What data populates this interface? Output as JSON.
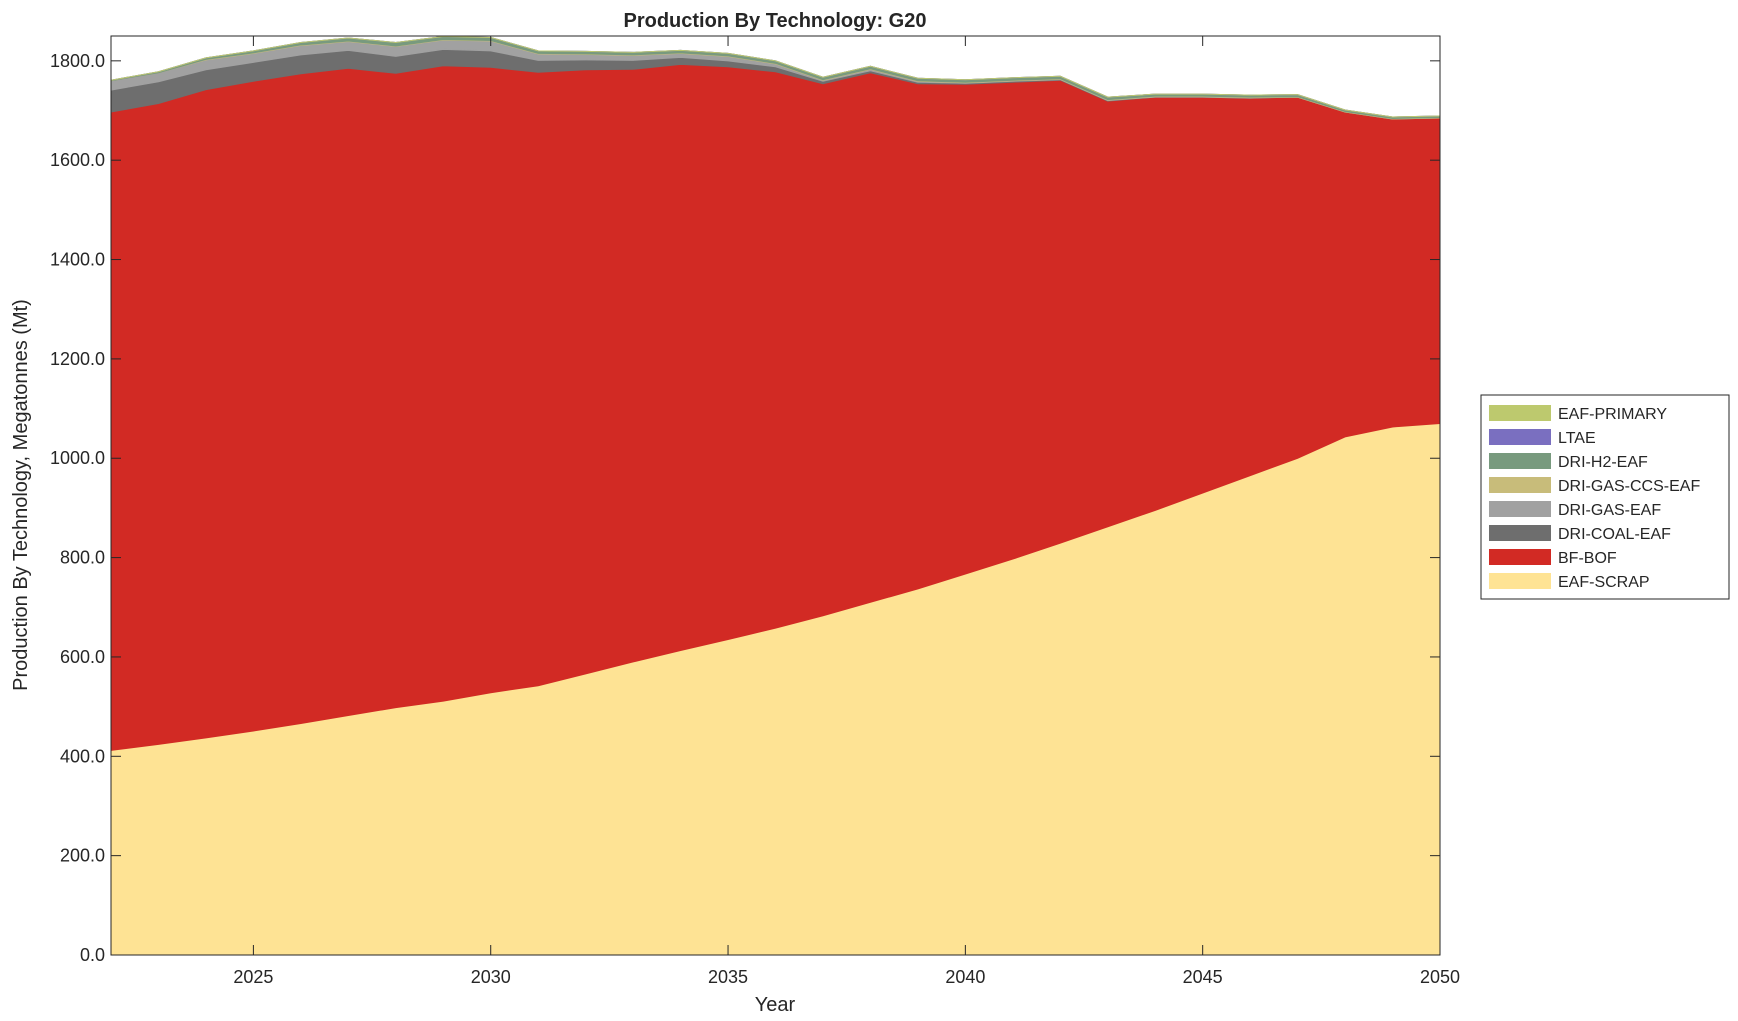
{
  "chart_data": {
    "type": "area",
    "stacked": true,
    "title": "Production By Technology: G20",
    "xlabel": "Year",
    "ylabel": "Production By Technology, Megatonnes (Mt)",
    "xlim": [
      2022,
      2050
    ],
    "ylim": [
      0,
      1850
    ],
    "xticks": [
      2025,
      2030,
      2035,
      2040,
      2045,
      2050
    ],
    "xtick_labels": [
      "2025",
      "2030",
      "2035",
      "2040",
      "2045",
      "2050"
    ],
    "yticks": [
      0,
      200,
      400,
      600,
      800,
      1000,
      1200,
      1400,
      1600,
      1800
    ],
    "ytick_labels": [
      "0.0",
      "200.0",
      "400.0",
      "600.0",
      "800.0",
      "1000.0",
      "1200.0",
      "1400.0",
      "1600.0",
      "1800.0"
    ],
    "legend_position": "right",
    "x": [
      2022,
      2023,
      2024,
      2025,
      2026,
      2027,
      2028,
      2029,
      2030,
      2031,
      2032,
      2033,
      2034,
      2035,
      2036,
      2037,
      2038,
      2039,
      2040,
      2041,
      2042,
      2043,
      2044,
      2045,
      2046,
      2047,
      2048,
      2049,
      2050
    ],
    "series": [
      {
        "name": "EAF-SCRAP",
        "color": "#FEE394",
        "values": [
          412,
          424,
          437,
          451,
          466,
          482,
          498,
          511,
          528,
          542,
          566,
          590,
          613,
          635,
          658,
          683,
          710,
          737,
          767,
          797,
          829,
          862,
          895,
          930,
          965,
          1000,
          1043,
          1063,
          1070
        ]
      },
      {
        "name": "BF-BOF",
        "color": "#D22A24",
        "values": [
          1285,
          1290,
          1305,
          1308,
          1308,
          1303,
          1277,
          1279,
          1259,
          1235,
          1216,
          1193,
          1180,
          1153,
          1120,
          1071,
          1066,
          1017,
          986,
          960,
          932,
          857,
          832,
          797,
          760,
          727,
          654,
          620,
          615
        ]
      },
      {
        "name": "DRI-COAL-EAF",
        "color": "#6E6E6E",
        "values": [
          44,
          44,
          40,
          38,
          38,
          36,
          34,
          33,
          33,
          24,
          20,
          18,
          14,
          12,
          10,
          5,
          4,
          3,
          2,
          2,
          1,
          1,
          0,
          0,
          0,
          0,
          0,
          0,
          0
        ]
      },
      {
        "name": "DRI-GAS-EAF",
        "color": "#A1A1A1",
        "values": [
          19,
          18,
          20,
          18,
          19,
          18,
          20,
          19,
          20,
          13,
          11,
          10,
          8,
          9,
          6,
          2,
          3,
          2,
          1,
          1,
          1,
          1,
          1,
          1,
          1,
          0,
          0,
          0,
          0
        ]
      },
      {
        "name": "DRI-GAS-CCS-EAF",
        "color": "#C8BC7A",
        "values": [
          0,
          0,
          1,
          1,
          1,
          1,
          1,
          1,
          1,
          1,
          1,
          1,
          1,
          1,
          1,
          1,
          1,
          1,
          1,
          1,
          1,
          1,
          1,
          1,
          1,
          1,
          1,
          1,
          1
        ]
      },
      {
        "name": "DRI-H2-EAF",
        "color": "#789A7E",
        "values": [
          1,
          2,
          3,
          4,
          5,
          6,
          7,
          6,
          6,
          5,
          5,
          5,
          5,
          5,
          5,
          5,
          5,
          5,
          5,
          5,
          5,
          5,
          4,
          4,
          4,
          4,
          3,
          3,
          3
        ]
      },
      {
        "name": "LTAE",
        "color": "#7A6FC0",
        "values": [
          0,
          0,
          0,
          0,
          0,
          0,
          0,
          0,
          0,
          0,
          0,
          0,
          0,
          0,
          0,
          0,
          0,
          0,
          0,
          0,
          0,
          0,
          0,
          0,
          0,
          0,
          0,
          0,
          0
        ]
      },
      {
        "name": "EAF-PRIMARY",
        "color": "#BDC96E",
        "values": [
          0,
          0,
          0,
          0,
          0,
          0,
          0,
          0,
          0,
          0,
          0,
          0,
          0,
          0,
          0,
          0,
          0,
          0,
          0,
          0,
          0,
          0,
          0,
          0,
          0,
          0,
          0,
          0,
          0
        ]
      }
    ],
    "legend_order": [
      "EAF-PRIMARY",
      "LTAE",
      "DRI-H2-EAF",
      "DRI-GAS-CCS-EAF",
      "DRI-GAS-EAF",
      "DRI-COAL-EAF",
      "BF-BOF",
      "EAF-SCRAP"
    ]
  }
}
